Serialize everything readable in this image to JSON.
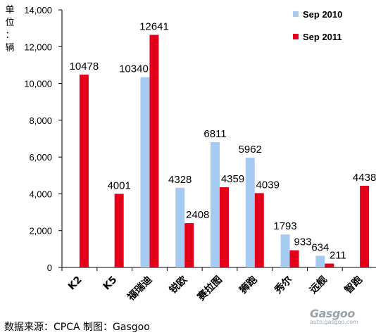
{
  "unit_label": "单位：辆",
  "source_text": "数据来源：CPCA  制图：Gasgoo",
  "watermark": {
    "logo": "Gasgoo",
    "url": "auto.gasgoo.com"
  },
  "chart_data": {
    "type": "bar",
    "categories": [
      "K2",
      "K5",
      "福瑞迪",
      "锐欧",
      "赛拉图",
      "狮跑",
      "秀尔",
      "远舰",
      "智跑"
    ],
    "series": [
      {
        "name": "Sep 2010",
        "color": "#a6cbf2",
        "values": [
          null,
          null,
          10340,
          4328,
          6811,
          5962,
          1793,
          634,
          null
        ]
      },
      {
        "name": "Sep 2011",
        "color": "#e4001a",
        "values": [
          10478,
          4001,
          12641,
          2408,
          4359,
          4039,
          933,
          211,
          4438
        ]
      }
    ],
    "ylim": [
      0,
      14000
    ],
    "yticks": [
      "0",
      "2,000",
      "4,000",
      "6,000",
      "8,000",
      "10,000",
      "12,000",
      "14,000"
    ],
    "legend_position": "top-right",
    "grid": false
  }
}
